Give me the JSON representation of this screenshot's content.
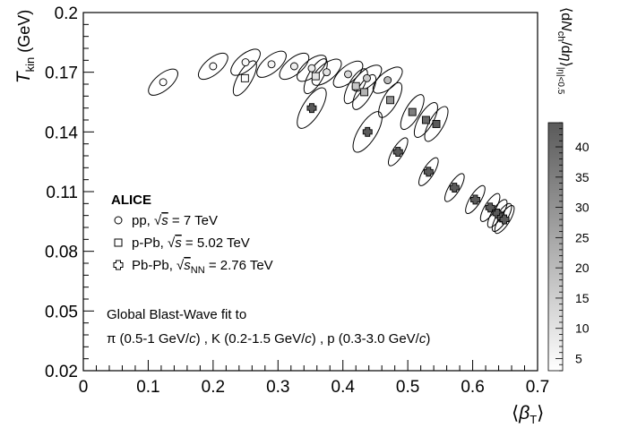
{
  "chart_data": {
    "type": "scatter",
    "title": "",
    "xlabel": "⟨β_T⟩",
    "ylabel": "T_kin (GeV)",
    "xlim": [
      0,
      0.7
    ],
    "ylim": [
      0.02,
      0.2
    ],
    "x_ticks": [
      "0",
      "0.1",
      "0.2",
      "0.3",
      "0.4",
      "0.5",
      "0.6",
      "0.7"
    ],
    "y_ticks": [
      "0.02",
      "0.05",
      "0.08",
      "0.11",
      "0.14",
      "0.17",
      "0.2"
    ],
    "colorbar": {
      "label": "⟨dN_ch/dη⟩ |η|<0.5",
      "range": [
        3,
        44
      ],
      "ticks": [
        "5",
        "10",
        "15",
        "20",
        "25",
        "30",
        "35",
        "40"
      ]
    },
    "legend": {
      "experiment": "ALICE",
      "entries": [
        {
          "marker": "circle",
          "label": "pp, √s = 7 TeV"
        },
        {
          "marker": "square",
          "label": "p-Pb, √s = 5.02 TeV"
        },
        {
          "marker": "cross",
          "label": "Pb-Pb, √s_NN = 2.76 TeV"
        }
      ]
    },
    "annotation": {
      "line1": "Global Blast-Wave fit to",
      "line2": "π (0.5-1 GeV/c) , K (0.2-1.5 GeV/c) , p (0.3-3.0 GeV/c)"
    },
    "series": [
      {
        "name": "pp, √s = 7 TeV",
        "marker": "circle",
        "points": [
          {
            "x": 0.123,
            "y": 0.165,
            "mult": 3
          },
          {
            "x": 0.2,
            "y": 0.173,
            "mult": 4
          },
          {
            "x": 0.25,
            "y": 0.175,
            "mult": 5
          },
          {
            "x": 0.29,
            "y": 0.174,
            "mult": 6
          },
          {
            "x": 0.325,
            "y": 0.173,
            "mult": 7
          },
          {
            "x": 0.352,
            "y": 0.172,
            "mult": 8
          },
          {
            "x": 0.375,
            "y": 0.17,
            "mult": 10
          },
          {
            "x": 0.408,
            "y": 0.169,
            "mult": 13
          },
          {
            "x": 0.437,
            "y": 0.167,
            "mult": 16
          },
          {
            "x": 0.469,
            "y": 0.166,
            "mult": 20
          }
        ]
      },
      {
        "name": "p-Pb, √s = 5.02 TeV",
        "marker": "square",
        "points": [
          {
            "x": 0.249,
            "y": 0.167,
            "mult": 4
          },
          {
            "x": 0.358,
            "y": 0.168,
            "mult": 10
          },
          {
            "x": 0.42,
            "y": 0.163,
            "mult": 17
          },
          {
            "x": 0.433,
            "y": 0.16,
            "mult": 22
          },
          {
            "x": 0.473,
            "y": 0.156,
            "mult": 30
          },
          {
            "x": 0.507,
            "y": 0.15,
            "mult": 35
          },
          {
            "x": 0.528,
            "y": 0.146,
            "mult": 40
          },
          {
            "x": 0.544,
            "y": 0.144,
            "mult": 44
          }
        ]
      },
      {
        "name": "Pb-Pb, √s_NN = 2.76 TeV",
        "marker": "cross",
        "points": [
          {
            "x": 0.352,
            "y": 0.152,
            "mult": 44
          },
          {
            "x": 0.438,
            "y": 0.14,
            "mult": 44
          },
          {
            "x": 0.485,
            "y": 0.13,
            "mult": 44
          },
          {
            "x": 0.532,
            "y": 0.12,
            "mult": 44
          },
          {
            "x": 0.572,
            "y": 0.112,
            "mult": 44
          },
          {
            "x": 0.604,
            "y": 0.106,
            "mult": 44
          },
          {
            "x": 0.627,
            "y": 0.102,
            "mult": 44
          },
          {
            "x": 0.638,
            "y": 0.099,
            "mult": 44
          },
          {
            "x": 0.645,
            "y": 0.097,
            "mult": 44
          },
          {
            "x": 0.649,
            "y": 0.096,
            "mult": 44
          }
        ]
      }
    ]
  }
}
